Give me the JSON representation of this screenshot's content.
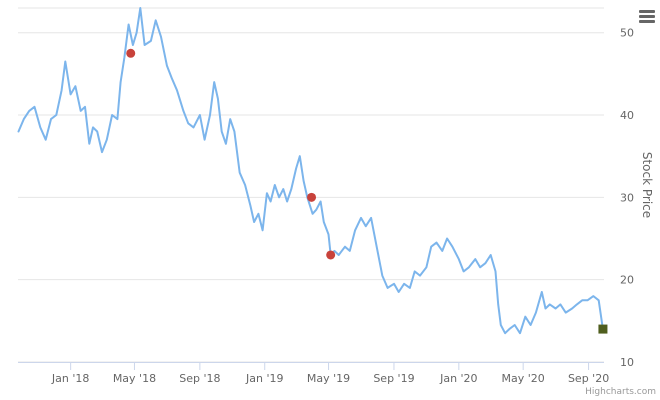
{
  "chart_data": {
    "type": "line",
    "title": "",
    "xlabel": "",
    "ylabel": "Stock Price",
    "ylim": [
      10,
      53
    ],
    "yticks": [
      10,
      20,
      30,
      40,
      50
    ],
    "xlim": [
      "2017-09-24",
      "2020-09-30"
    ],
    "xticks": [
      {
        "date": "2018-01-01",
        "label": "Jan '18"
      },
      {
        "date": "2018-05-01",
        "label": "May '18"
      },
      {
        "date": "2018-09-01",
        "label": "Sep '18"
      },
      {
        "date": "2019-01-01",
        "label": "Jan '19"
      },
      {
        "date": "2019-05-01",
        "label": "May '19"
      },
      {
        "date": "2019-09-01",
        "label": "Sep '19"
      },
      {
        "date": "2020-01-01",
        "label": "Jan '20"
      },
      {
        "date": "2020-05-01",
        "label": "May '20"
      },
      {
        "date": "2020-09-01",
        "label": "Sep '20"
      }
    ],
    "grid": true,
    "series": [
      {
        "color": "#7cb5ec",
        "points": [
          [
            "2017-09-25",
            38.0
          ],
          [
            "2017-10-05",
            39.5
          ],
          [
            "2017-10-15",
            40.5
          ],
          [
            "2017-10-25",
            41.0
          ],
          [
            "2017-11-05",
            38.5
          ],
          [
            "2017-11-15",
            37.0
          ],
          [
            "2017-11-25",
            39.5
          ],
          [
            "2017-12-05",
            40.0
          ],
          [
            "2017-12-15",
            43.0
          ],
          [
            "2017-12-22",
            46.5
          ],
          [
            "2018-01-01",
            42.5
          ],
          [
            "2018-01-10",
            43.5
          ],
          [
            "2018-01-20",
            40.5
          ],
          [
            "2018-01-28",
            41.0
          ],
          [
            "2018-02-05",
            36.5
          ],
          [
            "2018-02-12",
            38.5
          ],
          [
            "2018-02-20",
            38.0
          ],
          [
            "2018-03-01",
            35.5
          ],
          [
            "2018-03-10",
            37.0
          ],
          [
            "2018-03-20",
            40.0
          ],
          [
            "2018-03-30",
            39.5
          ],
          [
            "2018-04-05",
            44.0
          ],
          [
            "2018-04-12",
            47.0
          ],
          [
            "2018-04-20",
            51.0
          ],
          [
            "2018-04-28",
            48.5
          ],
          [
            "2018-05-05",
            50.0
          ],
          [
            "2018-05-12",
            53.0
          ],
          [
            "2018-05-20",
            48.5
          ],
          [
            "2018-06-01",
            49.0
          ],
          [
            "2018-06-10",
            51.5
          ],
          [
            "2018-06-20",
            49.5
          ],
          [
            "2018-07-01",
            46.0
          ],
          [
            "2018-07-10",
            44.5
          ],
          [
            "2018-07-20",
            43.0
          ],
          [
            "2018-08-01",
            40.5
          ],
          [
            "2018-08-10",
            39.0
          ],
          [
            "2018-08-20",
            38.5
          ],
          [
            "2018-09-01",
            40.0
          ],
          [
            "2018-09-10",
            37.0
          ],
          [
            "2018-09-20",
            40.0
          ],
          [
            "2018-09-28",
            44.0
          ],
          [
            "2018-10-05",
            42.0
          ],
          [
            "2018-10-12",
            38.0
          ],
          [
            "2018-10-20",
            36.5
          ],
          [
            "2018-10-28",
            39.5
          ],
          [
            "2018-11-05",
            38.0
          ],
          [
            "2018-11-15",
            33.0
          ],
          [
            "2018-11-25",
            31.5
          ],
          [
            "2018-12-05",
            29.0
          ],
          [
            "2018-12-12",
            27.0
          ],
          [
            "2018-12-20",
            28.0
          ],
          [
            "2018-12-28",
            26.0
          ],
          [
            "2019-01-05",
            30.5
          ],
          [
            "2019-01-12",
            29.5
          ],
          [
            "2019-01-20",
            31.5
          ],
          [
            "2019-01-28",
            30.0
          ],
          [
            "2019-02-05",
            31.0
          ],
          [
            "2019-02-12",
            29.5
          ],
          [
            "2019-02-20",
            31.0
          ],
          [
            "2019-03-01",
            33.5
          ],
          [
            "2019-03-08",
            35.0
          ],
          [
            "2019-03-15",
            32.0
          ],
          [
            "2019-03-22",
            30.0
          ],
          [
            "2019-04-01",
            28.0
          ],
          [
            "2019-04-08",
            28.5
          ],
          [
            "2019-04-16",
            29.5
          ],
          [
            "2019-04-22",
            27.0
          ],
          [
            "2019-05-01",
            25.5
          ],
          [
            "2019-05-05",
            23.0
          ],
          [
            "2019-05-12",
            23.5
          ],
          [
            "2019-05-20",
            23.0
          ],
          [
            "2019-06-01",
            24.0
          ],
          [
            "2019-06-10",
            23.5
          ],
          [
            "2019-06-20",
            26.0
          ],
          [
            "2019-07-01",
            27.5
          ],
          [
            "2019-07-10",
            26.5
          ],
          [
            "2019-07-20",
            27.5
          ],
          [
            "2019-08-01",
            23.5
          ],
          [
            "2019-08-10",
            20.5
          ],
          [
            "2019-08-20",
            19.0
          ],
          [
            "2019-09-01",
            19.5
          ],
          [
            "2019-09-10",
            18.5
          ],
          [
            "2019-09-20",
            19.5
          ],
          [
            "2019-10-01",
            19.0
          ],
          [
            "2019-10-10",
            21.0
          ],
          [
            "2019-10-20",
            20.5
          ],
          [
            "2019-11-01",
            21.5
          ],
          [
            "2019-11-10",
            24.0
          ],
          [
            "2019-11-20",
            24.5
          ],
          [
            "2019-12-01",
            23.5
          ],
          [
            "2019-12-10",
            25.0
          ],
          [
            "2019-12-20",
            24.0
          ],
          [
            "2020-01-01",
            22.5
          ],
          [
            "2020-01-10",
            21.0
          ],
          [
            "2020-01-20",
            21.5
          ],
          [
            "2020-02-01",
            22.5
          ],
          [
            "2020-02-10",
            21.5
          ],
          [
            "2020-02-20",
            22.0
          ],
          [
            "2020-03-01",
            23.0
          ],
          [
            "2020-03-10",
            21.0
          ],
          [
            "2020-03-15",
            17.0
          ],
          [
            "2020-03-20",
            14.5
          ],
          [
            "2020-03-28",
            13.5
          ],
          [
            "2020-04-05",
            14.0
          ],
          [
            "2020-04-15",
            14.5
          ],
          [
            "2020-04-25",
            13.5
          ],
          [
            "2020-05-05",
            15.5
          ],
          [
            "2020-05-15",
            14.5
          ],
          [
            "2020-05-25",
            16.0
          ],
          [
            "2020-06-05",
            18.5
          ],
          [
            "2020-06-12",
            16.5
          ],
          [
            "2020-06-20",
            17.0
          ],
          [
            "2020-07-01",
            16.5
          ],
          [
            "2020-07-10",
            17.0
          ],
          [
            "2020-07-20",
            16.0
          ],
          [
            "2020-08-01",
            16.5
          ],
          [
            "2020-08-10",
            17.0
          ],
          [
            "2020-08-20",
            17.5
          ],
          [
            "2020-08-30",
            17.5
          ],
          [
            "2020-09-10",
            18.0
          ],
          [
            "2020-09-20",
            17.5
          ],
          [
            "2020-09-28",
            14.0
          ]
        ]
      }
    ],
    "event_markers": [
      {
        "date": "2018-04-24",
        "value": 47.5,
        "color": "#c8423b"
      },
      {
        "date": "2019-03-30",
        "value": 30.0,
        "color": "#c8423b"
      },
      {
        "date": "2019-05-05",
        "value": 23.0,
        "color": "#c8423b"
      }
    ],
    "end_marker": {
      "date": "2020-09-28",
      "value": 14.0,
      "color": "#4f5e1e"
    },
    "colors": {
      "grid": "#e6e6e6",
      "axis": "#ccd6eb",
      "label": "#666666"
    }
  },
  "ui": {
    "menu_icon": "hamburger-menu-icon",
    "credits": "Highcharts.com"
  }
}
